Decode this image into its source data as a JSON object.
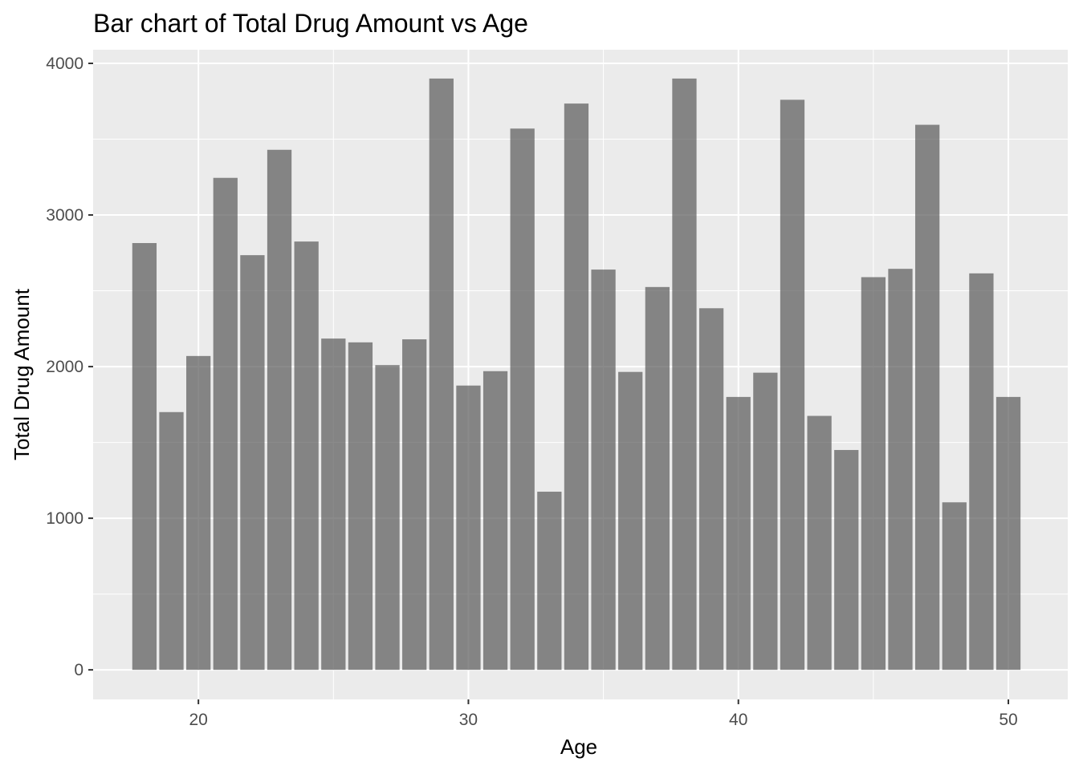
{
  "chart_data": {
    "type": "bar",
    "title": "Bar chart of Total Drug Amount vs Age",
    "xlabel": "Age",
    "ylabel": "Total Drug Amount",
    "x": [
      18,
      19,
      20,
      21,
      22,
      23,
      24,
      25,
      26,
      27,
      28,
      29,
      30,
      31,
      32,
      33,
      34,
      35,
      36,
      37,
      38,
      39,
      40,
      41,
      42,
      43,
      44,
      45,
      46,
      47,
      48,
      49,
      50
    ],
    "values": [
      2815,
      1700,
      2070,
      3245,
      2735,
      3430,
      2825,
      2185,
      2160,
      2010,
      2180,
      3900,
      1875,
      1970,
      3570,
      1175,
      3735,
      2640,
      1965,
      2525,
      3900,
      2385,
      1800,
      1960,
      3760,
      1675,
      1450,
      2590,
      2645,
      3595,
      1105,
      2615,
      1800
    ],
    "xlim": [
      16.1,
      52.2
    ],
    "ylim": [
      -195,
      4090
    ],
    "xticks": [
      20,
      30,
      40,
      50
    ],
    "yticks": [
      0,
      1000,
      2000,
      3000,
      4000
    ],
    "bar_color": "#595959",
    "bar_opacity": 0.7,
    "panel_background": "#ebebeb",
    "grid_color": "#ffffff",
    "grid": true,
    "legend": "none"
  }
}
